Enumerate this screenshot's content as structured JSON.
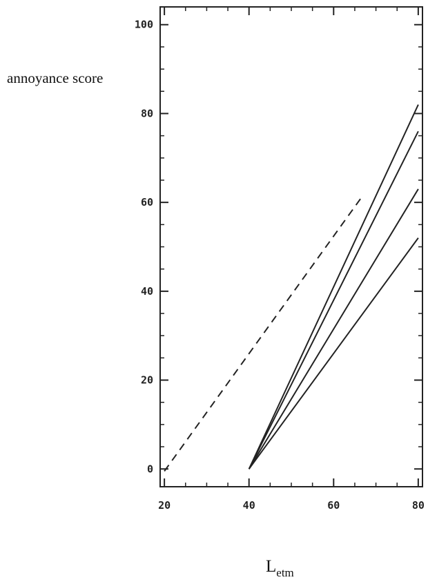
{
  "chart_data": {
    "type": "line",
    "title": "",
    "ylabel": "annoyance score",
    "xlabel": {
      "main": "L",
      "subscript": "etm"
    },
    "xlim": [
      19,
      81
    ],
    "ylim": [
      -4,
      104
    ],
    "xticks": [
      20,
      40,
      60,
      80
    ],
    "yticks": [
      0,
      20,
      40,
      60,
      80,
      100
    ],
    "xtick_labels": [
      "20",
      "40",
      "60",
      "80"
    ],
    "ytick_labels": [
      "0",
      "20",
      "40",
      "60",
      "80",
      "100"
    ],
    "grid": false,
    "legend": "none",
    "series": [
      {
        "style": "dashed",
        "color": "#222222",
        "x": [
          20,
          66.5
        ],
        "y": [
          -0.5,
          61
        ]
      },
      {
        "style": "solid",
        "color": "#222222",
        "x": [
          40,
          80
        ],
        "y": [
          0,
          82
        ]
      },
      {
        "style": "solid",
        "color": "#222222",
        "x": [
          40,
          80
        ],
        "y": [
          0,
          76
        ]
      },
      {
        "style": "solid",
        "color": "#222222",
        "x": [
          40,
          80
        ],
        "y": [
          0,
          63
        ]
      },
      {
        "style": "solid",
        "color": "#222222",
        "x": [
          40,
          80
        ],
        "y": [
          0,
          52
        ]
      }
    ]
  }
}
